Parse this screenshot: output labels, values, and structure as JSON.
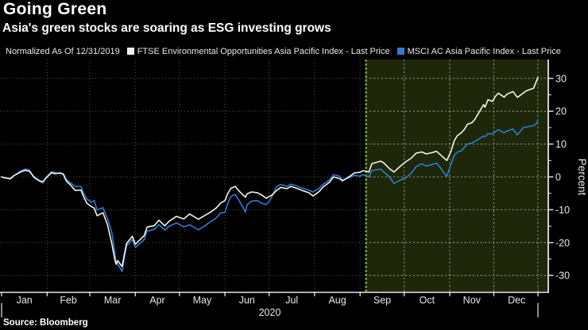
{
  "chart_data": {
    "type": "line",
    "title": "Going Green",
    "subtitle": "Asia's green stocks are soaring as ESG investing grows",
    "note": "Normalized As Of 12/31/2019",
    "source": "Source: Bloomberg",
    "ylabel": "Percent",
    "ylim": [
      -34,
      35
    ],
    "yticks": [
      30,
      20,
      10,
      0,
      -10,
      -20,
      -30
    ],
    "minor_yticks": [
      25,
      15,
      5,
      -5,
      -15,
      -25
    ],
    "x_months": [
      "Jan",
      "Feb",
      "Mar",
      "Apr",
      "May",
      "Jun",
      "Jul",
      "Aug",
      "Sep",
      "Oct",
      "Nov",
      "Dec"
    ],
    "year_label": "2020",
    "grid": true,
    "legend_position": "top",
    "y_axis_side": "right",
    "highlight_region": {
      "start_date": "09-05",
      "end_date": "12-31"
    },
    "dates": [
      "01-01",
      "01-03",
      "01-07",
      "01-09",
      "01-14",
      "01-17",
      "01-20",
      "01-23",
      "01-27",
      "01-29",
      "01-31",
      "02-04",
      "02-06",
      "02-10",
      "02-12",
      "02-14",
      "02-17",
      "02-20",
      "02-24",
      "02-26",
      "02-28",
      "03-02",
      "03-04",
      "03-06",
      "03-10",
      "03-13",
      "03-16",
      "03-18",
      "03-19",
      "03-20",
      "03-23",
      "03-26",
      "03-30",
      "04-01",
      "04-07",
      "04-09",
      "04-14",
      "04-17",
      "04-21",
      "04-24",
      "04-29",
      "05-04",
      "05-08",
      "05-14",
      "05-18",
      "05-22",
      "05-26",
      "05-29",
      "06-01",
      "06-03",
      "06-05",
      "06-08",
      "06-11",
      "06-15",
      "06-16",
      "06-19",
      "06-23",
      "06-26",
      "06-29",
      "07-01",
      "07-03",
      "07-06",
      "07-09",
      "07-13",
      "07-16",
      "07-20",
      "07-24",
      "07-28",
      "07-31",
      "08-04",
      "08-07",
      "08-11",
      "08-14",
      "08-18",
      "08-20",
      "08-25",
      "08-28",
      "09-01",
      "09-03",
      "09-07",
      "09-09",
      "09-15",
      "09-17",
      "09-21",
      "09-24",
      "09-29",
      "10-02",
      "10-06",
      "10-09",
      "10-13",
      "10-16",
      "10-20",
      "10-23",
      "10-26",
      "10-28",
      "10-30",
      "11-02",
      "11-04",
      "11-06",
      "11-09",
      "11-11",
      "11-13",
      "11-16",
      "11-18",
      "11-20",
      "11-24",
      "11-25",
      "11-27",
      "11-30",
      "12-02",
      "12-04",
      "12-08",
      "12-10",
      "12-14",
      "12-17",
      "12-21",
      "12-23",
      "12-28",
      "12-30",
      "12-31"
    ],
    "series": [
      {
        "name": "FTSE Environmental Opportunities Asia Pacific Index - Last Price",
        "color": "#f5f4ea",
        "values": [
          0.0,
          -0.3,
          -0.5,
          0.3,
          1.5,
          2.0,
          1.7,
          0.0,
          -1.2,
          -1.5,
          -0.5,
          1.3,
          1.0,
          1.2,
          0.8,
          -1.2,
          -2.5,
          -4.1,
          -4.0,
          -6.2,
          -8.0,
          -9.0,
          -9.5,
          -11.8,
          -10.9,
          -14.5,
          -20.3,
          -25.1,
          -26.6,
          -25.5,
          -27.3,
          -20.3,
          -18.1,
          -20.5,
          -17.9,
          -15.3,
          -14.8,
          -13.2,
          -14.9,
          -13.5,
          -12.0,
          -12.8,
          -11.3,
          -12.9,
          -11.8,
          -10.8,
          -9.5,
          -8.0,
          -7.2,
          -5.0,
          -3.5,
          -2.9,
          -4.5,
          -6.2,
          -5.2,
          -4.6,
          -4.8,
          -5.5,
          -6.5,
          -6.0,
          -5.5,
          -4.2,
          -3.2,
          -3.6,
          -2.9,
          -3.5,
          -4.2,
          -4.8,
          -5.8,
          -4.5,
          -3.0,
          -1.7,
          0.0,
          -0.5,
          -1.2,
          0.2,
          1.2,
          1.4,
          1.9,
          1.5,
          4.0,
          4.8,
          4.3,
          2.5,
          1.5,
          3.5,
          4.6,
          5.8,
          7.2,
          7.6,
          7.0,
          7.4,
          7.8,
          6.6,
          5.8,
          5.0,
          8.0,
          11.0,
          12.5,
          13.5,
          14.5,
          16.0,
          16.5,
          17.5,
          19.0,
          22.0,
          21.2,
          23.5,
          23.0,
          24.5,
          25.5,
          24.3,
          25.2,
          26.0,
          24.2,
          25.5,
          26.2,
          27.0,
          29.2,
          30.3
        ]
      },
      {
        "name": "MSCI AC Asia Pacific Index - Last Price",
        "color": "#2d7dd2",
        "values": [
          0.0,
          -0.2,
          -0.7,
          0.2,
          1.8,
          2.4,
          2.1,
          -0.3,
          -1.4,
          -1.8,
          -0.3,
          1.6,
          1.3,
          1.0,
          1.0,
          -0.8,
          -1.8,
          -2.9,
          -2.9,
          -5.2,
          -6.7,
          -7.7,
          -7.2,
          -10.1,
          -9.4,
          -12.6,
          -16.9,
          -22.9,
          -26.0,
          -26.5,
          -28.8,
          -21.0,
          -19.1,
          -21.5,
          -19.1,
          -16.5,
          -16.0,
          -14.5,
          -16.2,
          -15.0,
          -14.0,
          -15.2,
          -14.6,
          -16.1,
          -15.0,
          -13.7,
          -12.5,
          -11.0,
          -10.8,
          -8.0,
          -6.0,
          -5.3,
          -7.5,
          -10.7,
          -8.5,
          -7.4,
          -7.2,
          -8.0,
          -8.4,
          -7.5,
          -6.0,
          -3.0,
          -2.3,
          -2.9,
          -2.2,
          -2.8,
          -3.5,
          -4.0,
          -4.6,
          -3.5,
          -2.2,
          -1.0,
          0.7,
          0.2,
          -1.0,
          -0.2,
          0.5,
          0.2,
          0.7,
          0.0,
          1.9,
          2.4,
          1.5,
          0.0,
          -2.0,
          -0.8,
          -0.3,
          1.2,
          3.1,
          4.0,
          3.3,
          3.8,
          4.2,
          2.6,
          1.2,
          0.2,
          4.0,
          6.5,
          7.5,
          8.0,
          9.0,
          10.0,
          10.3,
          10.8,
          11.3,
          12.5,
          12.2,
          13.2,
          13.0,
          13.8,
          14.4,
          13.4,
          14.0,
          14.6,
          12.8,
          15.0,
          15.2,
          15.6,
          16.3,
          17.2
        ]
      }
    ],
    "colors": {
      "background": "#000000",
      "highlight_fill": "#1e2709",
      "highlight_edge": "#80b83f",
      "grid_dim": "#565650",
      "grid_bright": "#8f977a",
      "axis": "#e8e8e8",
      "tick_label": "#e8e8e8",
      "title_text": "#ffffff",
      "legend_text": "#e9e9e9"
    }
  }
}
